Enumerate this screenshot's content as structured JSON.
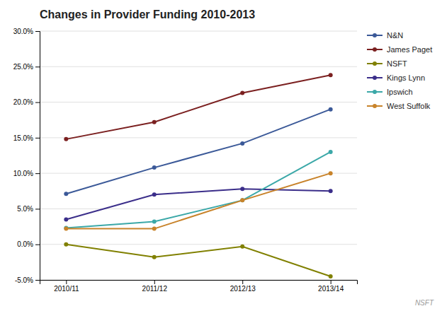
{
  "chart_data": {
    "type": "line",
    "title": "Changes in Provider Funding 2010-2013",
    "categories": [
      "2010/11",
      "2011/12",
      "2012/13",
      "2013/14"
    ],
    "series": [
      {
        "name": "N&N",
        "values": [
          7.1,
          10.8,
          14.2,
          19.0
        ],
        "color": "#3B5998"
      },
      {
        "name": "James Paget",
        "values": [
          14.8,
          17.2,
          21.3,
          23.8
        ],
        "color": "#7B2020"
      },
      {
        "name": "NSFT",
        "values": [
          0.0,
          -1.8,
          -0.3,
          -4.5
        ],
        "color": "#808000"
      },
      {
        "name": "Kings Lynn",
        "values": [
          3.5,
          7.0,
          7.8,
          7.5
        ],
        "color": "#3B2E8A"
      },
      {
        "name": "Ipswich",
        "values": [
          2.3,
          3.2,
          6.2,
          13.0
        ],
        "color": "#3BA8A8"
      },
      {
        "name": "West Suffolk",
        "values": [
          2.2,
          2.2,
          6.2,
          10.0
        ],
        "color": "#C8832A"
      }
    ],
    "ylim": [
      -5.0,
      30.0
    ],
    "yticks": [
      {
        "value": -5.0,
        "label": "-5.0%"
      },
      {
        "value": 0.0,
        "label": "0.0%"
      },
      {
        "value": 5.0,
        "label": "5.0%"
      },
      {
        "value": 10.0,
        "label": "10.0%"
      },
      {
        "value": 15.0,
        "label": "15.0%"
      },
      {
        "value": 20.0,
        "label": "20.0%"
      },
      {
        "value": 25.0,
        "label": "25.0%"
      },
      {
        "value": 30.0,
        "label": "30.0%"
      }
    ],
    "grid": true,
    "legend": "right",
    "marker": "circle",
    "annotations": [
      "NSFT"
    ]
  }
}
